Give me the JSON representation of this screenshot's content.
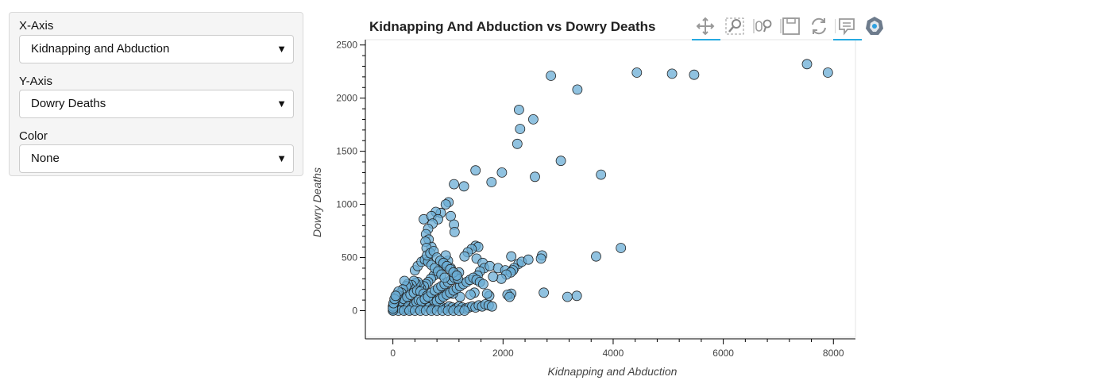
{
  "controls": {
    "x_axis": {
      "label": "X-Axis",
      "value": "Kidnapping and Abduction"
    },
    "y_axis": {
      "label": "Y-Axis",
      "value": "Dowry Deaths"
    },
    "color": {
      "label": "Color",
      "value": "None"
    }
  },
  "toolbar": {
    "tools": [
      "pan-icon",
      "box-zoom-icon",
      "wheel-zoom-icon",
      "save-icon",
      "reset-icon",
      "hover-icon",
      "bokeh-logo-icon"
    ],
    "active": [
      "pan-icon",
      "hover-icon"
    ],
    "accent": "#26aae1"
  },
  "chart_data": {
    "type": "scatter",
    "title": "Kidnapping And Abduction vs Dowry Deaths",
    "xlabel": "Kidnapping and Abduction",
    "ylabel": "Dowry Deaths",
    "xlim": [
      -500,
      8400
    ],
    "ylim": [
      -250,
      2550
    ],
    "xticks": [
      0,
      2000,
      4000,
      6000,
      8000
    ],
    "yticks": [
      0,
      500,
      1000,
      1500,
      2000,
      2500
    ],
    "marker_fill": "#6baed6",
    "marker_edge": "#222222",
    "grid": false,
    "legend": "none",
    "points": [
      [
        7520,
        2320
      ],
      [
        7900,
        2240
      ],
      [
        5470,
        2220
      ],
      [
        5070,
        2230
      ],
      [
        4430,
        2240
      ],
      [
        2870,
        2210
      ],
      [
        3350,
        2080
      ],
      [
        2290,
        1890
      ],
      [
        2310,
        1710
      ],
      [
        2550,
        1800
      ],
      [
        2260,
        1570
      ],
      [
        1500,
        1320
      ],
      [
        1980,
        1300
      ],
      [
        2580,
        1260
      ],
      [
        3050,
        1410
      ],
      [
        3780,
        1280
      ],
      [
        1790,
        1210
      ],
      [
        1110,
        1190
      ],
      [
        1290,
        1170
      ],
      [
        1010,
        1020
      ],
      [
        960,
        1000
      ],
      [
        870,
        920
      ],
      [
        780,
        930
      ],
      [
        1050,
        890
      ],
      [
        1110,
        810
      ],
      [
        1120,
        740
      ],
      [
        560,
        860
      ],
      [
        700,
        890
      ],
      [
        820,
        860
      ],
      [
        720,
        820
      ],
      [
        640,
        770
      ],
      [
        600,
        720
      ],
      [
        650,
        670
      ],
      [
        700,
        600
      ],
      [
        590,
        650
      ],
      [
        610,
        590
      ],
      [
        1500,
        610
      ],
      [
        1550,
        600
      ],
      [
        1430,
        580
      ],
      [
        1360,
        550
      ],
      [
        1300,
        510
      ],
      [
        1520,
        490
      ],
      [
        1630,
        450
      ],
      [
        1660,
        400
      ],
      [
        1580,
        370
      ],
      [
        1540,
        330
      ],
      [
        1760,
        420
      ],
      [
        1910,
        400
      ],
      [
        2040,
        380
      ],
      [
        2150,
        510
      ],
      [
        2280,
        440
      ],
      [
        2340,
        460
      ],
      [
        2460,
        480
      ],
      [
        2710,
        520
      ],
      [
        2690,
        490
      ],
      [
        2200,
        400
      ],
      [
        2180,
        380
      ],
      [
        2140,
        360
      ],
      [
        2060,
        340
      ],
      [
        1970,
        300
      ],
      [
        1820,
        320
      ],
      [
        3690,
        510
      ],
      [
        4140,
        590
      ],
      [
        2740,
        170
      ],
      [
        3170,
        130
      ],
      [
        3340,
        140
      ],
      [
        2150,
        160
      ],
      [
        2080,
        150
      ],
      [
        2120,
        130
      ],
      [
        1750,
        140
      ],
      [
        1710,
        160
      ],
      [
        1480,
        170
      ],
      [
        1410,
        150
      ],
      [
        1220,
        130
      ],
      [
        1090,
        160
      ],
      [
        950,
        190
      ],
      [
        900,
        140
      ],
      [
        1200,
        360
      ],
      [
        1130,
        340
      ],
      [
        1050,
        400
      ],
      [
        1000,
        470
      ],
      [
        960,
        520
      ],
      [
        910,
        430
      ],
      [
        850,
        390
      ],
      [
        800,
        350
      ],
      [
        740,
        330
      ],
      [
        690,
        300
      ],
      [
        640,
        270
      ],
      [
        600,
        250
      ],
      [
        560,
        230
      ],
      [
        510,
        210
      ],
      [
        480,
        240
      ],
      [
        450,
        270
      ],
      [
        410,
        260
      ],
      [
        380,
        280
      ],
      [
        340,
        240
      ],
      [
        300,
        220
      ],
      [
        270,
        250
      ],
      [
        240,
        230
      ],
      [
        210,
        280
      ],
      [
        180,
        200
      ],
      [
        150,
        170
      ],
      [
        130,
        140
      ],
      [
        110,
        120
      ],
      [
        90,
        100
      ],
      [
        70,
        80
      ],
      [
        50,
        60
      ],
      [
        40,
        40
      ],
      [
        30,
        30
      ],
      [
        20,
        20
      ],
      [
        10,
        10
      ],
      [
        5,
        5
      ],
      [
        60,
        20
      ],
      [
        120,
        30
      ],
      [
        180,
        40
      ],
      [
        240,
        50
      ],
      [
        300,
        60
      ],
      [
        360,
        40
      ],
      [
        420,
        30
      ],
      [
        480,
        20
      ],
      [
        540,
        40
      ],
      [
        600,
        60
      ],
      [
        660,
        30
      ],
      [
        720,
        20
      ],
      [
        780,
        50
      ],
      [
        840,
        40
      ],
      [
        900,
        30
      ],
      [
        960,
        20
      ],
      [
        1020,
        40
      ],
      [
        1080,
        30
      ],
      [
        1140,
        20
      ],
      [
        1200,
        40
      ],
      [
        1260,
        30
      ],
      [
        1320,
        20
      ],
      [
        1380,
        30
      ],
      [
        1440,
        40
      ],
      [
        1500,
        30
      ],
      [
        1560,
        50
      ],
      [
        1620,
        40
      ],
      [
        1680,
        60
      ],
      [
        1740,
        50
      ],
      [
        1800,
        40
      ],
      [
        100,
        60
      ],
      [
        150,
        90
      ],
      [
        200,
        110
      ],
      [
        260,
        130
      ],
      [
        320,
        150
      ],
      [
        380,
        170
      ],
      [
        440,
        190
      ],
      [
        500,
        180
      ],
      [
        560,
        160
      ],
      [
        620,
        140
      ],
      [
        680,
        120
      ],
      [
        740,
        100
      ],
      [
        800,
        90
      ],
      [
        860,
        110
      ],
      [
        920,
        130
      ],
      [
        980,
        150
      ],
      [
        1040,
        170
      ],
      [
        1100,
        190
      ],
      [
        1160,
        210
      ],
      [
        1220,
        230
      ],
      [
        1280,
        250
      ],
      [
        1340,
        270
      ],
      [
        1400,
        290
      ],
      [
        1460,
        310
      ],
      [
        1520,
        290
      ],
      [
        1580,
        270
      ],
      [
        1640,
        250
      ],
      [
        220,
        10
      ],
      [
        260,
        20
      ],
      [
        280,
        40
      ],
      [
        320,
        10
      ],
      [
        350,
        30
      ],
      [
        390,
        60
      ],
      [
        430,
        80
      ],
      [
        470,
        100
      ],
      [
        520,
        90
      ],
      [
        580,
        110
      ],
      [
        640,
        130
      ],
      [
        700,
        170
      ],
      [
        760,
        190
      ],
      [
        820,
        210
      ],
      [
        880,
        230
      ],
      [
        940,
        250
      ],
      [
        1000,
        270
      ],
      [
        1060,
        290
      ],
      [
        1120,
        310
      ],
      [
        1180,
        300
      ],
      [
        400,
        380
      ],
      [
        450,
        420
      ],
      [
        520,
        460
      ],
      [
        580,
        480
      ],
      [
        640,
        460
      ],
      [
        700,
        430
      ],
      [
        760,
        400
      ],
      [
        820,
        370
      ],
      [
        880,
        340
      ],
      [
        940,
        310
      ],
      [
        620,
        520
      ],
      [
        680,
        540
      ],
      [
        740,
        560
      ],
      [
        800,
        500
      ],
      [
        860,
        470
      ],
      [
        920,
        450
      ],
      [
        980,
        420
      ],
      [
        1040,
        390
      ],
      [
        1100,
        360
      ],
      [
        1160,
        330
      ],
      [
        100,
        0
      ],
      [
        200,
        0
      ],
      [
        300,
        0
      ],
      [
        400,
        0
      ],
      [
        500,
        0
      ],
      [
        600,
        0
      ],
      [
        700,
        0
      ],
      [
        800,
        0
      ],
      [
        900,
        0
      ],
      [
        1000,
        0
      ],
      [
        1100,
        0
      ],
      [
        1200,
        0
      ],
      [
        1300,
        0
      ],
      [
        0,
        0
      ],
      [
        20,
        60
      ],
      [
        40,
        90
      ],
      [
        60,
        120
      ],
      [
        80,
        150
      ],
      [
        100,
        180
      ],
      [
        0,
        40
      ],
      [
        0,
        20
      ],
      [
        10,
        70
      ],
      [
        30,
        110
      ],
      [
        50,
        140
      ]
    ]
  }
}
